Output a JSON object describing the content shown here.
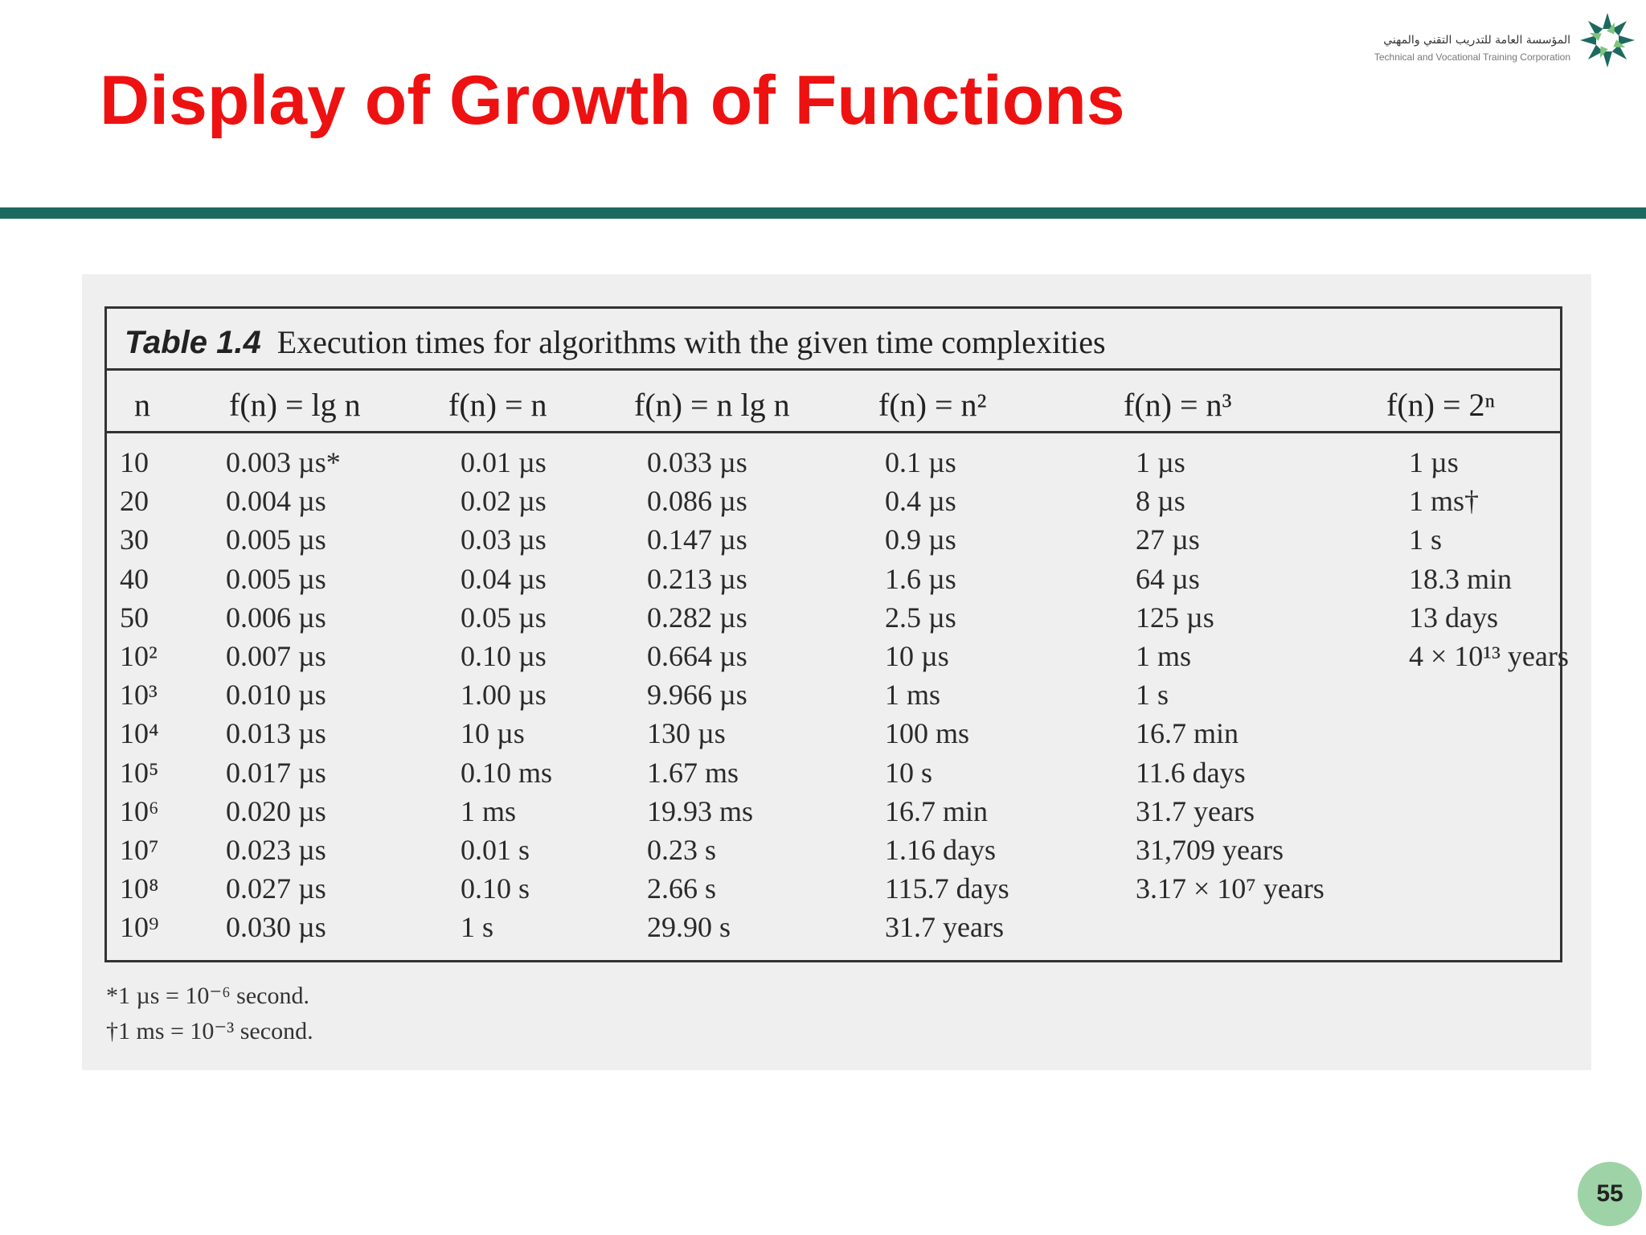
{
  "slide": {
    "title": "Display of Growth of Functions",
    "page_number": "55"
  },
  "logo": {
    "arabic": "المؤسسة العامة للتدريب التقني والمهني",
    "english": "Technical and Vocational Training Corporation"
  },
  "table": {
    "label": "Table 1.4",
    "caption": "Execution times for algorithms with the given time complexities",
    "headers": [
      "n",
      "f(n) = lg n",
      "f(n) = n",
      "f(n) = n lg n",
      "f(n) = n²",
      "f(n) = n³",
      "f(n) = 2ⁿ"
    ],
    "rows": [
      [
        "10",
        "0.003 µs*",
        "0.01 µs",
        "0.033 µs",
        "0.1 µs",
        "1 µs",
        "1 µs"
      ],
      [
        "20",
        "0.004 µs",
        "0.02 µs",
        "0.086 µs",
        "0.4 µs",
        "8 µs",
        "1 ms†"
      ],
      [
        "30",
        "0.005 µs",
        "0.03 µs",
        "0.147 µs",
        "0.9 µs",
        "27 µs",
        "1 s"
      ],
      [
        "40",
        "0.005 µs",
        "0.04 µs",
        "0.213 µs",
        "1.6 µs",
        "64 µs",
        "18.3 min"
      ],
      [
        "50",
        "0.006 µs",
        "0.05 µs",
        "0.282 µs",
        "2.5 µs",
        "125 µs",
        "13 days"
      ],
      [
        "10²",
        "0.007 µs",
        "0.10 µs",
        "0.664 µs",
        "10 µs",
        "1 ms",
        "4 × 10¹³ years"
      ],
      [
        "10³",
        "0.010 µs",
        "1.00 µs",
        "9.966 µs",
        "1 ms",
        "1 s",
        ""
      ],
      [
        "10⁴",
        "0.013 µs",
        "10 µs",
        "130 µs",
        "100 ms",
        "16.7 min",
        ""
      ],
      [
        "10⁵",
        "0.017 µs",
        "0.10 ms",
        "1.67 ms",
        "10 s",
        "11.6 days",
        ""
      ],
      [
        "10⁶",
        "0.020 µs",
        "1 ms",
        "19.93 ms",
        "16.7 min",
        "31.7 years",
        ""
      ],
      [
        "10⁷",
        "0.023 µs",
        "0.01 s",
        "0.23 s",
        "1.16 days",
        "31,709 years",
        ""
      ],
      [
        "10⁸",
        "0.027 µs",
        "0.10 s",
        "2.66 s",
        "115.7 days",
        "3.17 × 10⁷ years",
        ""
      ],
      [
        "10⁹",
        "0.030 µs",
        "1 s",
        "29.90 s",
        "31.7 years",
        "",
        ""
      ]
    ],
    "footnotes": [
      "*1 µs = 10⁻⁶ second.",
      "†1 ms = 10⁻³ second."
    ]
  }
}
